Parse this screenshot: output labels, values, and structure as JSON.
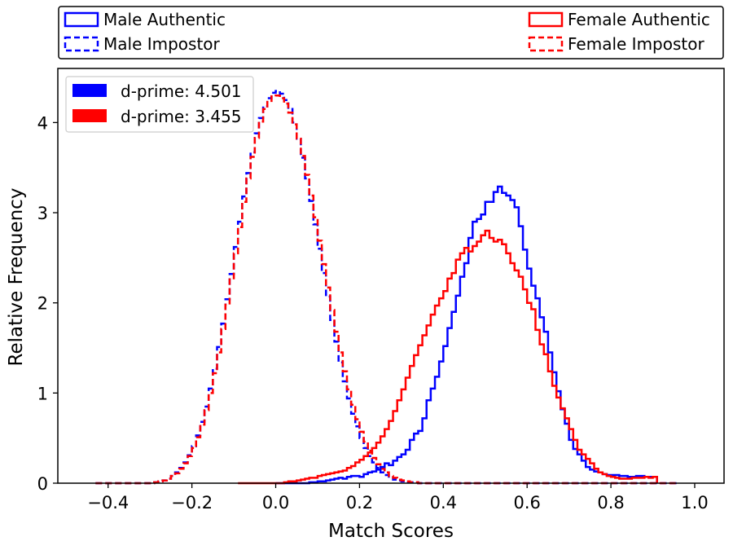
{
  "chart_data": {
    "type": "histogram-step",
    "xlabel": "Match Scores",
    "ylabel": "Relative Frequency",
    "xlim": [
      -0.52,
      1.07
    ],
    "ylim": [
      0,
      4.6
    ],
    "xticks": [
      -0.4,
      -0.2,
      0.0,
      0.2,
      0.4,
      0.6,
      0.8,
      1.0
    ],
    "xtick_labels": [
      "−0.4",
      "−0.2",
      "0.0",
      "0.2",
      "0.4",
      "0.6",
      "0.8",
      "1.0"
    ],
    "yticks": [
      0,
      1,
      2,
      3,
      4
    ],
    "ytick_labels": [
      "0",
      "1",
      "2",
      "3",
      "4"
    ],
    "bin_width": 0.01,
    "series_legend": [
      {
        "label": "Male Authentic",
        "style": "solid",
        "color": "#0000ff"
      },
      {
        "label": "Male Impostor",
        "style": "dashed",
        "color": "#0000ff"
      },
      {
        "label": "Female Authentic",
        "style": "solid",
        "color": "#ff0000"
      },
      {
        "label": "Female Impostor",
        "style": "dashed",
        "color": "#ff0000"
      }
    ],
    "dprime_legend": [
      {
        "label": "d-prime: 4.501",
        "color": "#0000ff"
      },
      {
        "label": "d-prime: 3.455",
        "color": "#ff0000"
      }
    ],
    "series": [
      {
        "name": "Male Impostor",
        "color": "#0000ff",
        "style": "dashed",
        "x0": -0.43,
        "values": [
          0,
          0,
          0,
          0,
          0,
          0,
          0,
          0,
          0,
          0,
          0,
          0,
          0,
          0,
          0.01,
          0.02,
          0.03,
          0.05,
          0.08,
          0.12,
          0.17,
          0.23,
          0.31,
          0.41,
          0.53,
          0.68,
          0.85,
          1.05,
          1.27,
          1.51,
          1.77,
          2.04,
          2.32,
          2.62,
          2.9,
          3.18,
          3.44,
          3.67,
          3.88,
          4.05,
          4.18,
          4.27,
          4.33,
          4.35,
          4.32,
          4.25,
          4.15,
          4.0,
          3.82,
          3.61,
          3.38,
          3.13,
          2.87,
          2.6,
          2.33,
          2.07,
          1.81,
          1.57,
          1.34,
          1.13,
          0.94,
          0.77,
          0.63,
          0.5,
          0.39,
          0.3,
          0.23,
          0.17,
          0.12,
          0.09,
          0.06,
          0.04,
          0.03,
          0.02,
          0.01,
          0.01,
          0.01,
          0,
          0,
          0,
          0,
          0,
          0,
          0,
          0,
          0,
          0,
          0,
          0,
          0,
          0,
          0,
          0,
          0,
          0,
          0,
          0,
          0,
          0,
          0,
          0,
          0,
          0,
          0,
          0,
          0,
          0,
          0,
          0,
          0,
          0,
          0,
          0,
          0,
          0,
          0,
          0,
          0,
          0,
          0,
          0,
          0,
          0,
          0,
          0,
          0,
          0,
          0,
          0,
          0,
          0,
          0,
          0,
          0,
          0,
          0,
          0,
          0,
          0
        ]
      },
      {
        "name": "Female Impostor",
        "color": "#ff0000",
        "style": "dashed",
        "x0": -0.43,
        "values": [
          0,
          0,
          0,
          0,
          0,
          0,
          0,
          0,
          0,
          0,
          0,
          0,
          0,
          0,
          0.01,
          0.02,
          0.03,
          0.05,
          0.08,
          0.11,
          0.16,
          0.22,
          0.3,
          0.39,
          0.51,
          0.65,
          0.81,
          1.0,
          1.22,
          1.45,
          1.71,
          1.98,
          2.26,
          2.55,
          2.84,
          3.12,
          3.38,
          3.62,
          3.83,
          4.01,
          4.15,
          4.24,
          4.29,
          4.3,
          4.27,
          4.21,
          4.11,
          3.98,
          3.82,
          3.63,
          3.42,
          3.19,
          2.95,
          2.69,
          2.43,
          2.17,
          1.92,
          1.68,
          1.45,
          1.24,
          1.04,
          0.87,
          0.71,
          0.57,
          0.46,
          0.36,
          0.28,
          0.21,
          0.16,
          0.12,
          0.08,
          0.06,
          0.04,
          0.03,
          0.02,
          0.01,
          0.01,
          0,
          0,
          0,
          0,
          0,
          0,
          0,
          0,
          0,
          0,
          0,
          0,
          0,
          0,
          0,
          0,
          0,
          0,
          0,
          0,
          0,
          0,
          0,
          0,
          0,
          0,
          0,
          0,
          0,
          0,
          0,
          0,
          0,
          0,
          0,
          0,
          0,
          0,
          0,
          0,
          0,
          0,
          0,
          0,
          0,
          0,
          0,
          0,
          0,
          0,
          0,
          0,
          0,
          0,
          0,
          0,
          0,
          0,
          0,
          0,
          0,
          0
        ]
      },
      {
        "name": "Male Authentic",
        "color": "#0000ff",
        "style": "solid",
        "x0": 0.0,
        "values": [
          0,
          0,
          0,
          0,
          0,
          0,
          0,
          0,
          0.01,
          0.01,
          0.02,
          0.02,
          0.03,
          0.04,
          0.05,
          0.06,
          0.05,
          0.07,
          0.08,
          0.08,
          0.07,
          0.1,
          0.12,
          0.13,
          0.15,
          0.18,
          0.22,
          0.2,
          0.25,
          0.29,
          0.32,
          0.37,
          0.48,
          0.55,
          0.58,
          0.72,
          0.92,
          1.05,
          1.18,
          1.35,
          1.52,
          1.72,
          1.9,
          2.08,
          2.29,
          2.44,
          2.72,
          2.9,
          2.93,
          2.98,
          3.12,
          3.12,
          3.23,
          3.29,
          3.22,
          3.19,
          3.14,
          3.06,
          2.85,
          2.59,
          2.38,
          2.19,
          2.05,
          1.84,
          1.68,
          1.45,
          1.23,
          1.02,
          0.82,
          0.66,
          0.48,
          0.38,
          0.32,
          0.25,
          0.18,
          0.15,
          0.13,
          0.12,
          0.1,
          0.09,
          0.09,
          0.09,
          0.08,
          0.08,
          0.07,
          0.07,
          0.08,
          0.08,
          0.07,
          0.07,
          0.07
        ]
      },
      {
        "name": "Female Authentic",
        "color": "#ff0000",
        "style": "solid",
        "x0": -0.09,
        "values": [
          0,
          0,
          0,
          0,
          0,
          0,
          0,
          0,
          0,
          0,
          0,
          0.01,
          0.02,
          0.02,
          0.03,
          0.04,
          0.05,
          0.06,
          0.06,
          0.08,
          0.09,
          0.1,
          0.11,
          0.12,
          0.13,
          0.14,
          0.17,
          0.19,
          0.23,
          0.26,
          0.3,
          0.34,
          0.39,
          0.45,
          0.52,
          0.6,
          0.69,
          0.8,
          0.92,
          1.04,
          1.17,
          1.3,
          1.42,
          1.53,
          1.64,
          1.75,
          1.87,
          1.97,
          2.05,
          2.13,
          2.27,
          2.33,
          2.48,
          2.55,
          2.61,
          2.57,
          2.63,
          2.68,
          2.75,
          2.8,
          2.72,
          2.68,
          2.7,
          2.65,
          2.55,
          2.44,
          2.36,
          2.29,
          2.15,
          2.0,
          1.93,
          1.7,
          1.54,
          1.43,
          1.24,
          1.08,
          0.95,
          0.83,
          0.72,
          0.6,
          0.48,
          0.37,
          0.32,
          0.27,
          0.22,
          0.16,
          0.12,
          0.1,
          0.08,
          0.07,
          0.06,
          0.05,
          0.05,
          0.05,
          0.06,
          0.06,
          0.06,
          0.07,
          0.06,
          0.07
        ]
      }
    ]
  }
}
